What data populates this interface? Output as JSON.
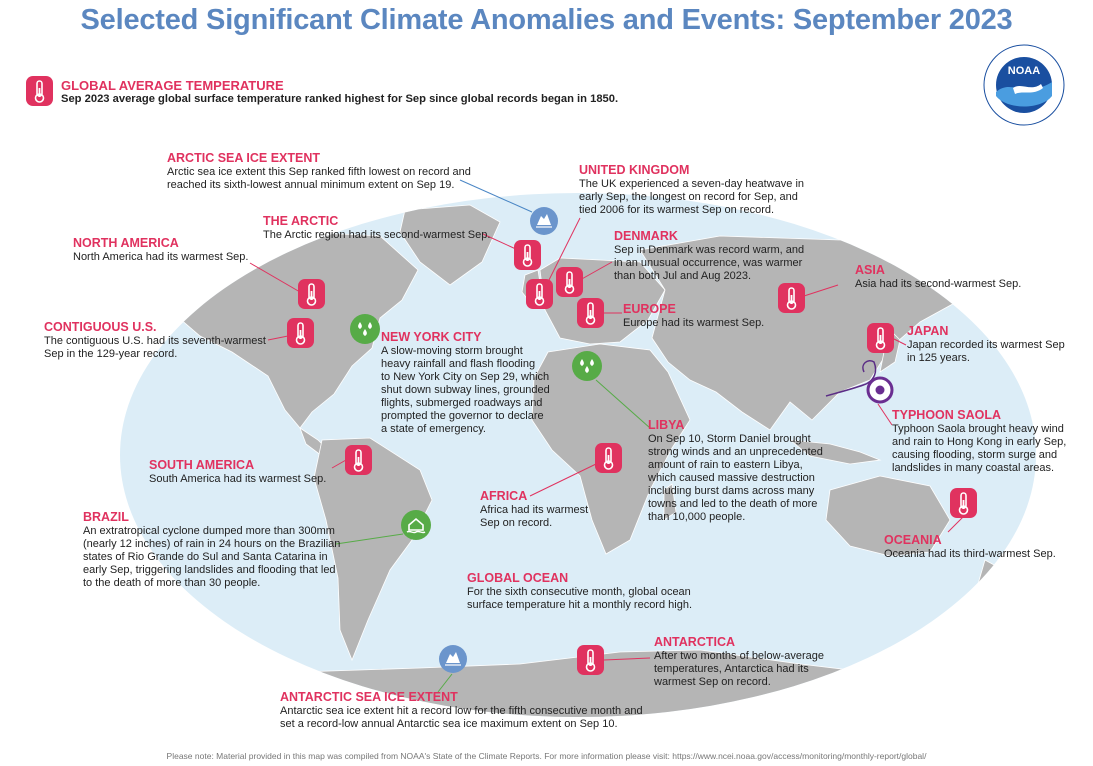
{
  "title": "Selected Significant Climate Anomalies and Events: September 2023",
  "logo": {
    "text": "NOAA",
    "ring_text": "NATIONAL OCEANIC AND ATMOSPHERIC ADMINISTRATION · U.S. DEPARTMENT OF COMMERCE"
  },
  "global_temp": {
    "heading": "GLOBAL AVERAGE TEMPERATURE",
    "text": "Sep 2023 average global surface temperature ranked highest for Sep since global records began in 1850."
  },
  "annotations": {
    "arctic_sea_ice": {
      "heading": "ARCTIC SEA ICE EXTENT",
      "lines": [
        "Arctic sea ice extent this Sep ranked fifth lowest on record and",
        "reached its sixth-lowest annual minimum extent on Sep 19."
      ]
    },
    "the_arctic": {
      "heading": "THE ARCTIC",
      "lines": [
        "The Arctic region had its second-warmest Sep."
      ]
    },
    "north_america": {
      "heading": "NORTH AMERICA",
      "lines": [
        "North America had its warmest Sep."
      ]
    },
    "contiguous_us": {
      "heading": "CONTIGUOUS U.S.",
      "lines": [
        "The contiguous U.S. had its seventh-warmest",
        "Sep in the 129-year record."
      ]
    },
    "new_york_city": {
      "heading": "NEW YORK CITY",
      "lines": [
        "A slow-moving storm brought",
        "heavy rainfall and flash flooding",
        "to New York City on Sep 29, which",
        "shut down subway lines, grounded",
        "flights, submerged roadways and",
        "prompted the governor to declare",
        "a state of emergency."
      ]
    },
    "united_kingdom": {
      "heading": "UNITED KINGDOM",
      "lines": [
        "The UK experienced a seven-day heatwave in",
        "early Sep, the longest on record for Sep, and",
        "tied 2006 for its warmest Sep on record."
      ]
    },
    "denmark": {
      "heading": "DENMARK",
      "lines": [
        "Sep in Denmark was record warm, and",
        "in an unusual occurrence, was warmer",
        "than both Jul and Aug 2023."
      ]
    },
    "europe": {
      "heading": "EUROPE",
      "lines": [
        "Europe had its warmest Sep."
      ]
    },
    "asia": {
      "heading": "ASIA",
      "lines": [
        "Asia had its second-warmest Sep."
      ]
    },
    "japan": {
      "heading": "JAPAN",
      "lines": [
        "Japan recorded its warmest Sep",
        "in 125 years."
      ]
    },
    "typhoon_saola": {
      "heading": "TYPHOON SAOLA",
      "lines": [
        "Typhoon Saola brought heavy wind",
        "and rain to Hong Kong in early Sep,",
        "causing flooding, storm surge and",
        "landslides in many coastal areas."
      ]
    },
    "libya": {
      "heading": "LIBYA",
      "lines": [
        "On Sep 10, Storm Daniel brought",
        "strong winds and an unprecedented",
        "amount of rain to eastern Libya,",
        "which caused massive destruction",
        "including burst dams across many",
        "towns and led to the death of more",
        "than 10,000 people."
      ]
    },
    "africa": {
      "heading": "AFRICA",
      "lines": [
        "Africa had its warmest",
        "Sep on record."
      ]
    },
    "south_america": {
      "heading": "SOUTH AMERICA",
      "lines": [
        "South America had its warmest Sep."
      ]
    },
    "brazil": {
      "heading": "BRAZIL",
      "lines": [
        "An extratropical cyclone dumped more than 300mm",
        "(nearly 12 inches) of rain in 24 hours on the Brazilian",
        "states of Rio Grande do Sul and Santa Catarina in",
        "early Sep, triggering landslides and flooding that led",
        "to the death of more than 30 people."
      ]
    },
    "oceania": {
      "heading": "OCEANIA",
      "lines": [
        "Oceania had its third-warmest Sep."
      ]
    },
    "global_ocean": {
      "heading": "GLOBAL OCEAN",
      "lines": [
        "For the sixth consecutive month, global ocean",
        "surface temperature hit a monthly record high."
      ]
    },
    "antarctica": {
      "heading": "ANTARCTICA",
      "lines": [
        "After two months of below-average",
        "temperatures, Antarctica had its",
        "warmest Sep on record."
      ]
    },
    "antarctic_sea_ice": {
      "heading": "ANTARCTIC SEA ICE EXTENT",
      "lines": [
        "Antarctic sea ice extent hit a record low for the fifth consecutive month and",
        "set a record-low annual Antarctic sea ice maximum extent on Sep 10."
      ]
    }
  },
  "icons": {
    "temperature": "thermometer-icon",
    "rain": "rain-drops-icon",
    "sea_ice": "iceberg-icon",
    "flood": "flooded-house-icon",
    "cyclone": "typhoon-symbol-icon"
  },
  "colors": {
    "heading": "#e0325f",
    "title": "#5b87c0",
    "ocean": "#dcedf7",
    "land": "#b5b5b5",
    "rain_icon": "#57ab47",
    "ice_icon": "#6b95cc",
    "leader_line": "#4a86c5",
    "typhoon_track": "#5b2d86"
  },
  "footnote": "Please note: Material provided in this map was compiled from NOAA's State of the Climate Reports. For more information please visit: https://www.ncei.noaa.gov/access/monitoring/monthly-report/global/"
}
